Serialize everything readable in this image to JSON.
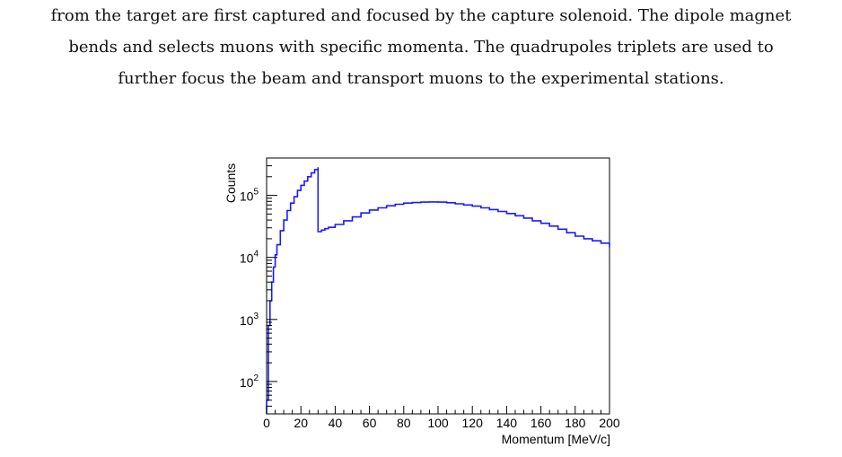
{
  "body_text": [
    "from the target are first captured and focused by the capture solenoid. The dipole magnet",
    "bends and selects muons with specific momenta. The quadrupoles triplets are used to",
    "further focus the beam and transport muons to the experimental stations."
  ],
  "chart_data": {
    "type": "line",
    "title": "",
    "xlabel": "Momentum [MeV/c]",
    "ylabel": "Counts",
    "xlim": [
      0,
      200
    ],
    "ylim": [
      30,
      400000
    ],
    "yscale": "log",
    "grid": false,
    "x_ticks": [
      0,
      20,
      40,
      60,
      80,
      100,
      120,
      140,
      160,
      180,
      200
    ],
    "y_tick_labels": [
      {
        "value": 100,
        "base": "10",
        "exp": "2"
      },
      {
        "value": 1000,
        "base": "10",
        "exp": "3"
      },
      {
        "value": 10000,
        "base": "10",
        "exp": "4"
      },
      {
        "value": 100000,
        "base": "10",
        "exp": "5"
      }
    ],
    "series": [
      {
        "color": "#1a1aff",
        "x": [
          0,
          1,
          2,
          3,
          4,
          5,
          6,
          8,
          10,
          12,
          14,
          16,
          18,
          20,
          22,
          24,
          26,
          28,
          30,
          30,
          32,
          34,
          36,
          40,
          45,
          50,
          55,
          60,
          65,
          70,
          75,
          80,
          85,
          90,
          95,
          100,
          105,
          110,
          115,
          120,
          125,
          130,
          135,
          140,
          145,
          150,
          155,
          160,
          165,
          170,
          175,
          180,
          185,
          190,
          195,
          200
        ],
        "y": [
          50,
          800,
          2000,
          4000,
          7000,
          11000,
          16000,
          27000,
          40000,
          57000,
          75000,
          95000,
          120000,
          145000,
          170000,
          200000,
          230000,
          260000,
          285000,
          26000,
          27500,
          29000,
          30500,
          34000,
          39000,
          45000,
          52000,
          58000,
          63000,
          68000,
          72000,
          75000,
          76500,
          78000,
          78500,
          78000,
          76000,
          73000,
          70000,
          67000,
          63000,
          59000,
          55000,
          51000,
          47000,
          43000,
          39000,
          35500,
          32000,
          28500,
          25000,
          22000,
          20000,
          18500,
          17000,
          14500
        ]
      }
    ]
  }
}
